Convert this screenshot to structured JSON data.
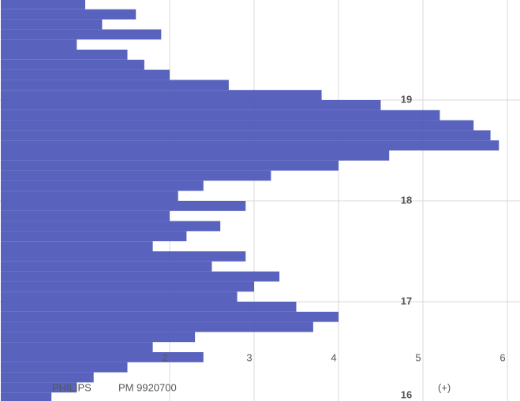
{
  "chart_data": {
    "type": "bar",
    "orientation": "horizontal",
    "color": "#4b56b9",
    "y": [
      19.95,
      19.85,
      19.75,
      19.65,
      19.55,
      19.45,
      19.35,
      19.25,
      19.15,
      19.05,
      18.95,
      18.85,
      18.75,
      18.65,
      18.55,
      18.45,
      18.35,
      18.25,
      18.15,
      18.05,
      17.95,
      17.85,
      17.75,
      17.65,
      17.55,
      17.45,
      17.35,
      17.25,
      17.15,
      17.05,
      16.95,
      16.85,
      16.75,
      16.65,
      16.55,
      16.45,
      16.35,
      16.25,
      16.15,
      16.05
    ],
    "values": [
      1.0,
      1.6,
      1.2,
      1.9,
      0.9,
      1.5,
      1.7,
      2.0,
      2.7,
      3.8,
      4.5,
      5.2,
      5.6,
      5.8,
      5.9,
      4.6,
      4.0,
      3.2,
      2.4,
      2.1,
      2.9,
      2.0,
      2.6,
      2.2,
      1.8,
      2.9,
      2.5,
      3.3,
      3.0,
      2.8,
      3.5,
      4.0,
      3.7,
      2.3,
      1.8,
      2.4,
      1.5,
      1.1,
      0.9,
      0.6
    ],
    "xlim": [
      0,
      6.1
    ],
    "xticks": [
      2,
      3,
      4,
      5,
      6
    ],
    "ylim": [
      16,
      20
    ],
    "yticks": [
      16,
      17,
      18,
      19
    ],
    "grid": true,
    "annotations": [
      "PHILIPS",
      "PM 9920700",
      "(+)"
    ]
  }
}
